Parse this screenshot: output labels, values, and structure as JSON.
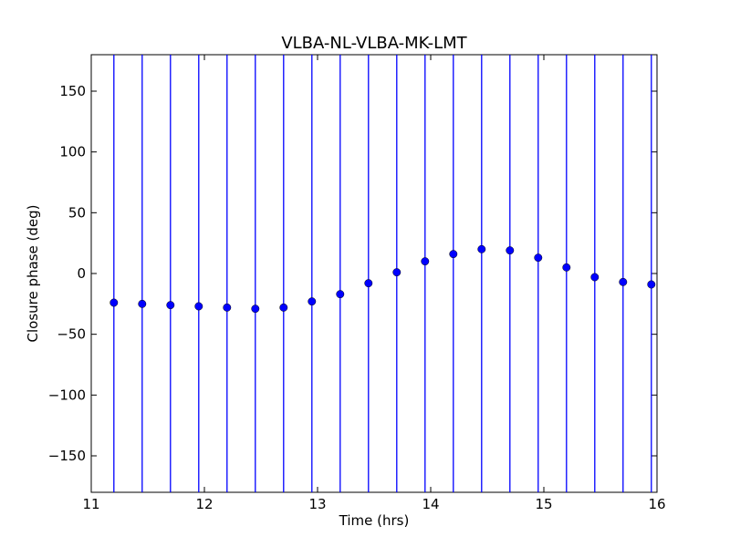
{
  "chart_data": {
    "type": "scatter",
    "title": "VLBA-NL-VLBA-MK-LMT",
    "xlabel": "Time (hrs)",
    "ylabel": "Closure phase (deg)",
    "xlim": [
      11,
      16
    ],
    "ylim": [
      -180,
      180
    ],
    "xticks": [
      11,
      12,
      13,
      14,
      15,
      16
    ],
    "xtick_labels": [
      "11",
      "12",
      "13",
      "14",
      "15",
      "16"
    ],
    "yticks": [
      -150,
      -100,
      -50,
      0,
      50,
      100,
      150
    ],
    "ytick_labels": [
      "−150",
      "−100",
      "−50",
      "0",
      "50",
      "100",
      "150"
    ],
    "grid": false,
    "marker_color": "#0000ff",
    "errorbar_color": "#0000ff",
    "series": [
      {
        "x": [
          11.2,
          11.45,
          11.7,
          11.95,
          12.2,
          12.45,
          12.7,
          12.95,
          13.2,
          13.45,
          13.7,
          13.95,
          14.2,
          14.45,
          14.7,
          14.95,
          15.2,
          15.45,
          15.7,
          15.95
        ],
        "y": [
          -24,
          -25,
          -26,
          -27,
          -28,
          -29,
          -28,
          -23,
          -17,
          -8,
          1,
          10,
          16,
          20,
          19,
          13,
          5,
          -3,
          -7,
          -9
        ],
        "error_spans_full_range": true
      }
    ]
  }
}
